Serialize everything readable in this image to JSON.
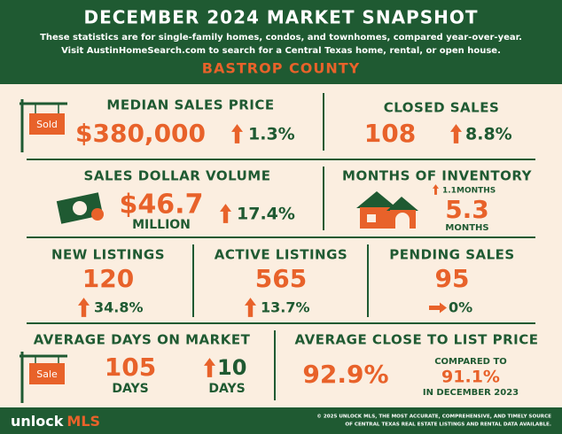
{
  "header": {
    "title": "DECEMBER 2024 MARKET SNAPSHOT",
    "subtitle_lines": [
      "These statistics are for single-family homes, condos, and townhomes, compared year-over-year.",
      "Visit AustinHomeSearch.com to search for a Central Texas home, rental, or open house."
    ],
    "region": "BASTROP COUNTY"
  },
  "stats": {
    "median_sales_price": {
      "label": "MEDIAN SALES PRICE",
      "sign": "Sold",
      "value": "$380,000",
      "change": "1.3%"
    },
    "closed_sales": {
      "label": "CLOSED SALES",
      "value": "108",
      "change": "8.8%"
    },
    "sales_dollar_volume": {
      "label": "SALES DOLLAR VOLUME",
      "value": "$46.7",
      "unit": "MILLION",
      "change": "17.4%"
    },
    "months_of_inventory": {
      "label": "MONTHS OF INVENTORY",
      "change": "1.1",
      "change_unit": "MONTHS",
      "value": "5.3",
      "unit": "MONTHS"
    },
    "new_listings": {
      "label": "NEW LISTINGS",
      "value": "120",
      "change": "34.8%"
    },
    "active_listings": {
      "label": "ACTIVE LISTINGS",
      "value": "565",
      "change": "13.7%"
    },
    "pending_sales": {
      "label": "PENDING SALES",
      "value": "95",
      "change": "0%"
    },
    "average_days_on_market": {
      "label": "AVERAGE DAYS ON MARKET",
      "sign": "Sale",
      "value": "105",
      "unit": "DAYS",
      "change": "10",
      "change_unit": "DAYS"
    },
    "average_close_to_list_price": {
      "label": "AVERAGE CLOSE TO LIST PRICE",
      "value": "92.9%",
      "compare_label": "COMPARED TO",
      "compare_value": "91.1%",
      "compare_period": "IN DECEMBER 2023"
    }
  },
  "footer": {
    "brand_a": "unlock",
    "brand_b": "MLS",
    "copyright_lines": [
      "© 2025 UNLOCK MLS, THE MOST ACCURATE, COMPREHENSIVE, AND TIMELY SOURCE",
      "OF CENTRAL TEXAS REAL ESTATE LISTINGS AND RENTAL DATA AVAILABLE."
    ]
  }
}
